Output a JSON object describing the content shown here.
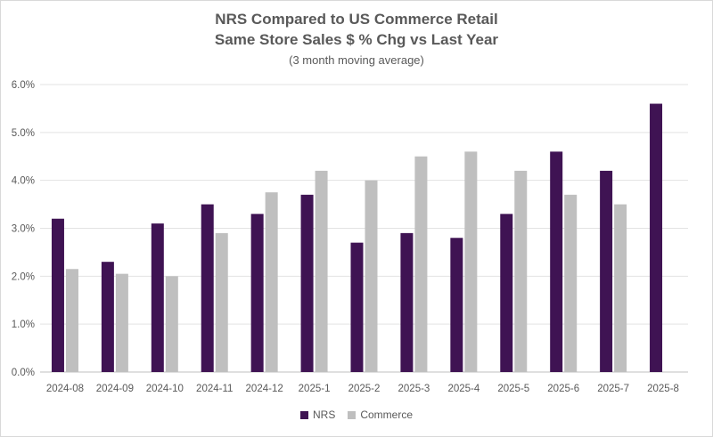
{
  "chart_data": {
    "type": "bar",
    "title": "NRS Compared to US Commerce Retail",
    "subtitle_line": "Same Store Sales $ % Chg vs Last Year",
    "note": "(3 month moving average)",
    "categories": [
      "2024-08",
      "2024-09",
      "2024-10",
      "2024-11",
      "2024-12",
      "2025-1",
      "2025-2",
      "2025-3",
      "2025-4",
      "2025-5",
      "2025-6",
      "2025-7",
      "2025-8"
    ],
    "series": [
      {
        "name": "NRS",
        "color": "#3f1353",
        "values": [
          3.2,
          2.3,
          3.1,
          3.5,
          3.3,
          3.7,
          2.7,
          2.9,
          2.8,
          3.3,
          4.6,
          4.2,
          5.6
        ]
      },
      {
        "name": "Commerce",
        "color": "#bfbfbf",
        "values": [
          2.15,
          2.05,
          2.0,
          2.9,
          3.75,
          4.2,
          4.0,
          4.5,
          4.6,
          4.2,
          3.7,
          3.5,
          null
        ]
      }
    ],
    "ylim": [
      0,
      6
    ],
    "y_ticks": [
      "0.0%",
      "1.0%",
      "2.0%",
      "3.0%",
      "4.0%",
      "5.0%",
      "6.0%"
    ],
    "y_tick_values": [
      0,
      1,
      2,
      3,
      4,
      5,
      6
    ],
    "xlabel": "",
    "ylabel": "",
    "grid": true,
    "legend_position": "bottom"
  }
}
